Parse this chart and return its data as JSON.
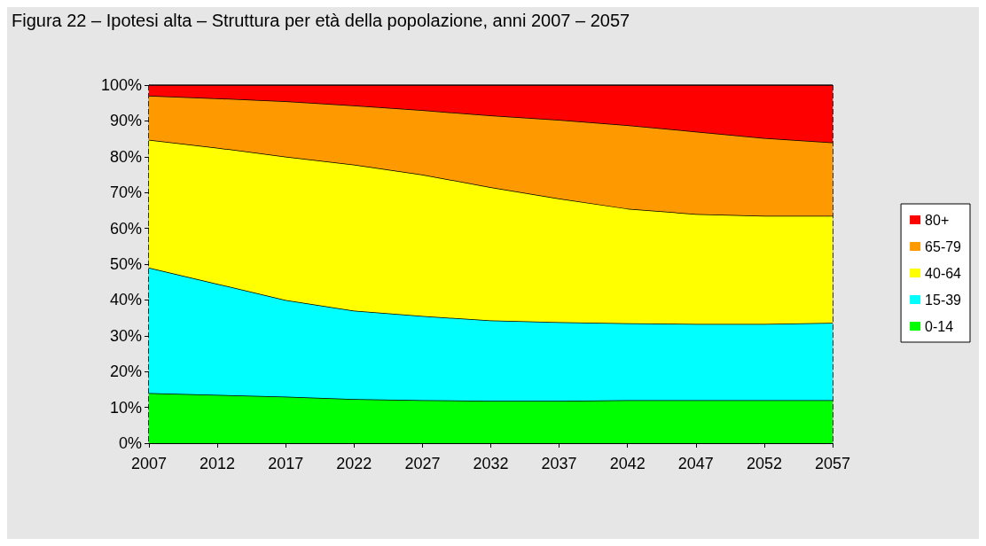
{
  "chart_data": {
    "type": "area",
    "title": "Figura 22 – Ipotesi alta – Struttura per età della popolazione, anni 2007 – 2057",
    "stacked": true,
    "categories": [
      "2007",
      "2012",
      "2017",
      "2022",
      "2027",
      "2032",
      "2037",
      "2042",
      "2047",
      "2052",
      "2057"
    ],
    "series": [
      {
        "name": "0-14",
        "color": "#00ff00",
        "values": [
          14,
          13.5,
          13,
          12.3,
          12,
          11.8,
          11.8,
          12,
          12,
          12,
          12
        ]
      },
      {
        "name": "15-39",
        "color": "#00ffff",
        "values": [
          35,
          31,
          27,
          24.7,
          23.5,
          22.5,
          22,
          21.5,
          21.3,
          21.3,
          21.6
        ]
      },
      {
        "name": "40-64",
        "color": "#ffff00",
        "values": [
          35.7,
          38,
          40,
          40.8,
          39.5,
          37.2,
          34.5,
          32,
          30.7,
          30.2,
          29.9
        ]
      },
      {
        "name": "65-79",
        "color": "#ff9900",
        "values": [
          12.3,
          13.8,
          15.5,
          16.5,
          18,
          20,
          22,
          23.3,
          23,
          21.7,
          20.5
        ]
      },
      {
        "name": "80+",
        "color": "#ff0000",
        "values": [
          3,
          3.7,
          4.5,
          5.7,
          7,
          8.5,
          9.7,
          11.2,
          13,
          14.8,
          16
        ]
      }
    ],
    "ylim": [
      0,
      100
    ],
    "yticks": [
      {
        "value": 0,
        "label": "0%"
      },
      {
        "value": 10,
        "label": "10%"
      },
      {
        "value": 20,
        "label": "20%"
      },
      {
        "value": 30,
        "label": "30%"
      },
      {
        "value": 40,
        "label": "40%"
      },
      {
        "value": 50,
        "label": "50%"
      },
      {
        "value": 60,
        "label": "60%"
      },
      {
        "value": 70,
        "label": "70%"
      },
      {
        "value": 80,
        "label": "80%"
      },
      {
        "value": 90,
        "label": "90%"
      },
      {
        "value": 100,
        "label": "100%"
      }
    ],
    "grid": "x",
    "legend": "right"
  }
}
